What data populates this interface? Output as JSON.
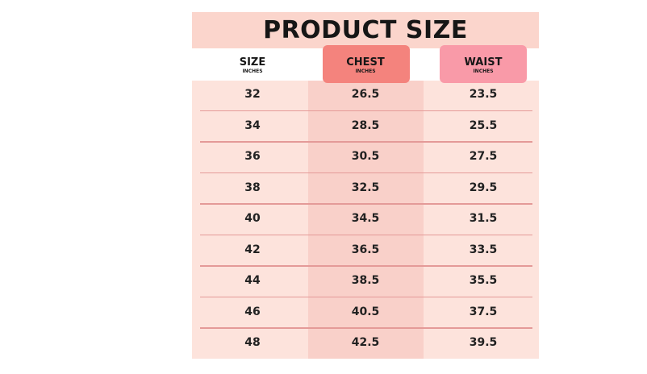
{
  "title": "PRODUCT SIZE",
  "table": {
    "columns": [
      {
        "label": "SIZE",
        "unit": "INCHES"
      },
      {
        "label": "CHEST",
        "unit": "INCHES"
      },
      {
        "label": "WAIST",
        "unit": "INCHES"
      }
    ],
    "rows": [
      [
        32,
        26.5,
        23.5
      ],
      [
        34,
        28.5,
        25.5
      ],
      [
        36,
        30.5,
        27.5
      ],
      [
        38,
        32.5,
        29.5
      ],
      [
        40,
        34.5,
        31.5
      ],
      [
        42,
        36.5,
        33.5
      ],
      [
        44,
        38.5,
        35.5
      ],
      [
        46,
        40.5,
        37.5
      ],
      [
        48,
        42.5,
        39.5
      ]
    ]
  }
}
